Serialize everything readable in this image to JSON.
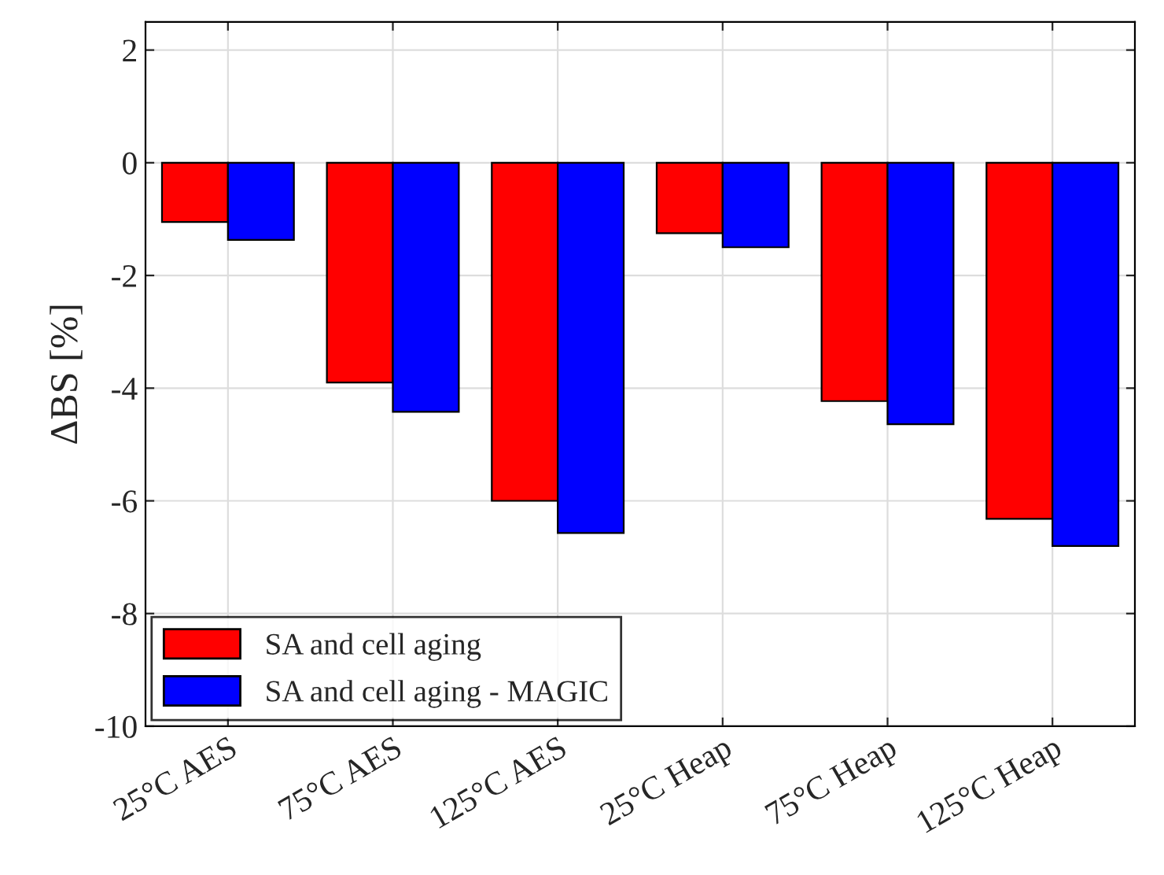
{
  "chart_data": {
    "type": "bar",
    "ylabel": "ΔBS [%]",
    "categories": [
      "25°C AES",
      "75°C AES",
      "125°C AES",
      "25°C Heap",
      "75°C Heap",
      "125°C Heap"
    ],
    "series": [
      {
        "name": "SA and cell aging",
        "color": "#ff0000",
        "values": [
          -1.05,
          -3.9,
          -6.0,
          -1.25,
          -4.23,
          -6.32
        ]
      },
      {
        "name": "SA and cell aging - MAGIC",
        "color": "#0000ff",
        "values": [
          -1.37,
          -4.42,
          -6.57,
          -1.5,
          -4.64,
          -6.8
        ]
      }
    ],
    "ylim": [
      -10,
      2.5
    ],
    "yticks": [
      -10,
      -8,
      -6,
      -4,
      -2,
      0,
      2
    ],
    "grid": true,
    "legend": "bottom left"
  }
}
